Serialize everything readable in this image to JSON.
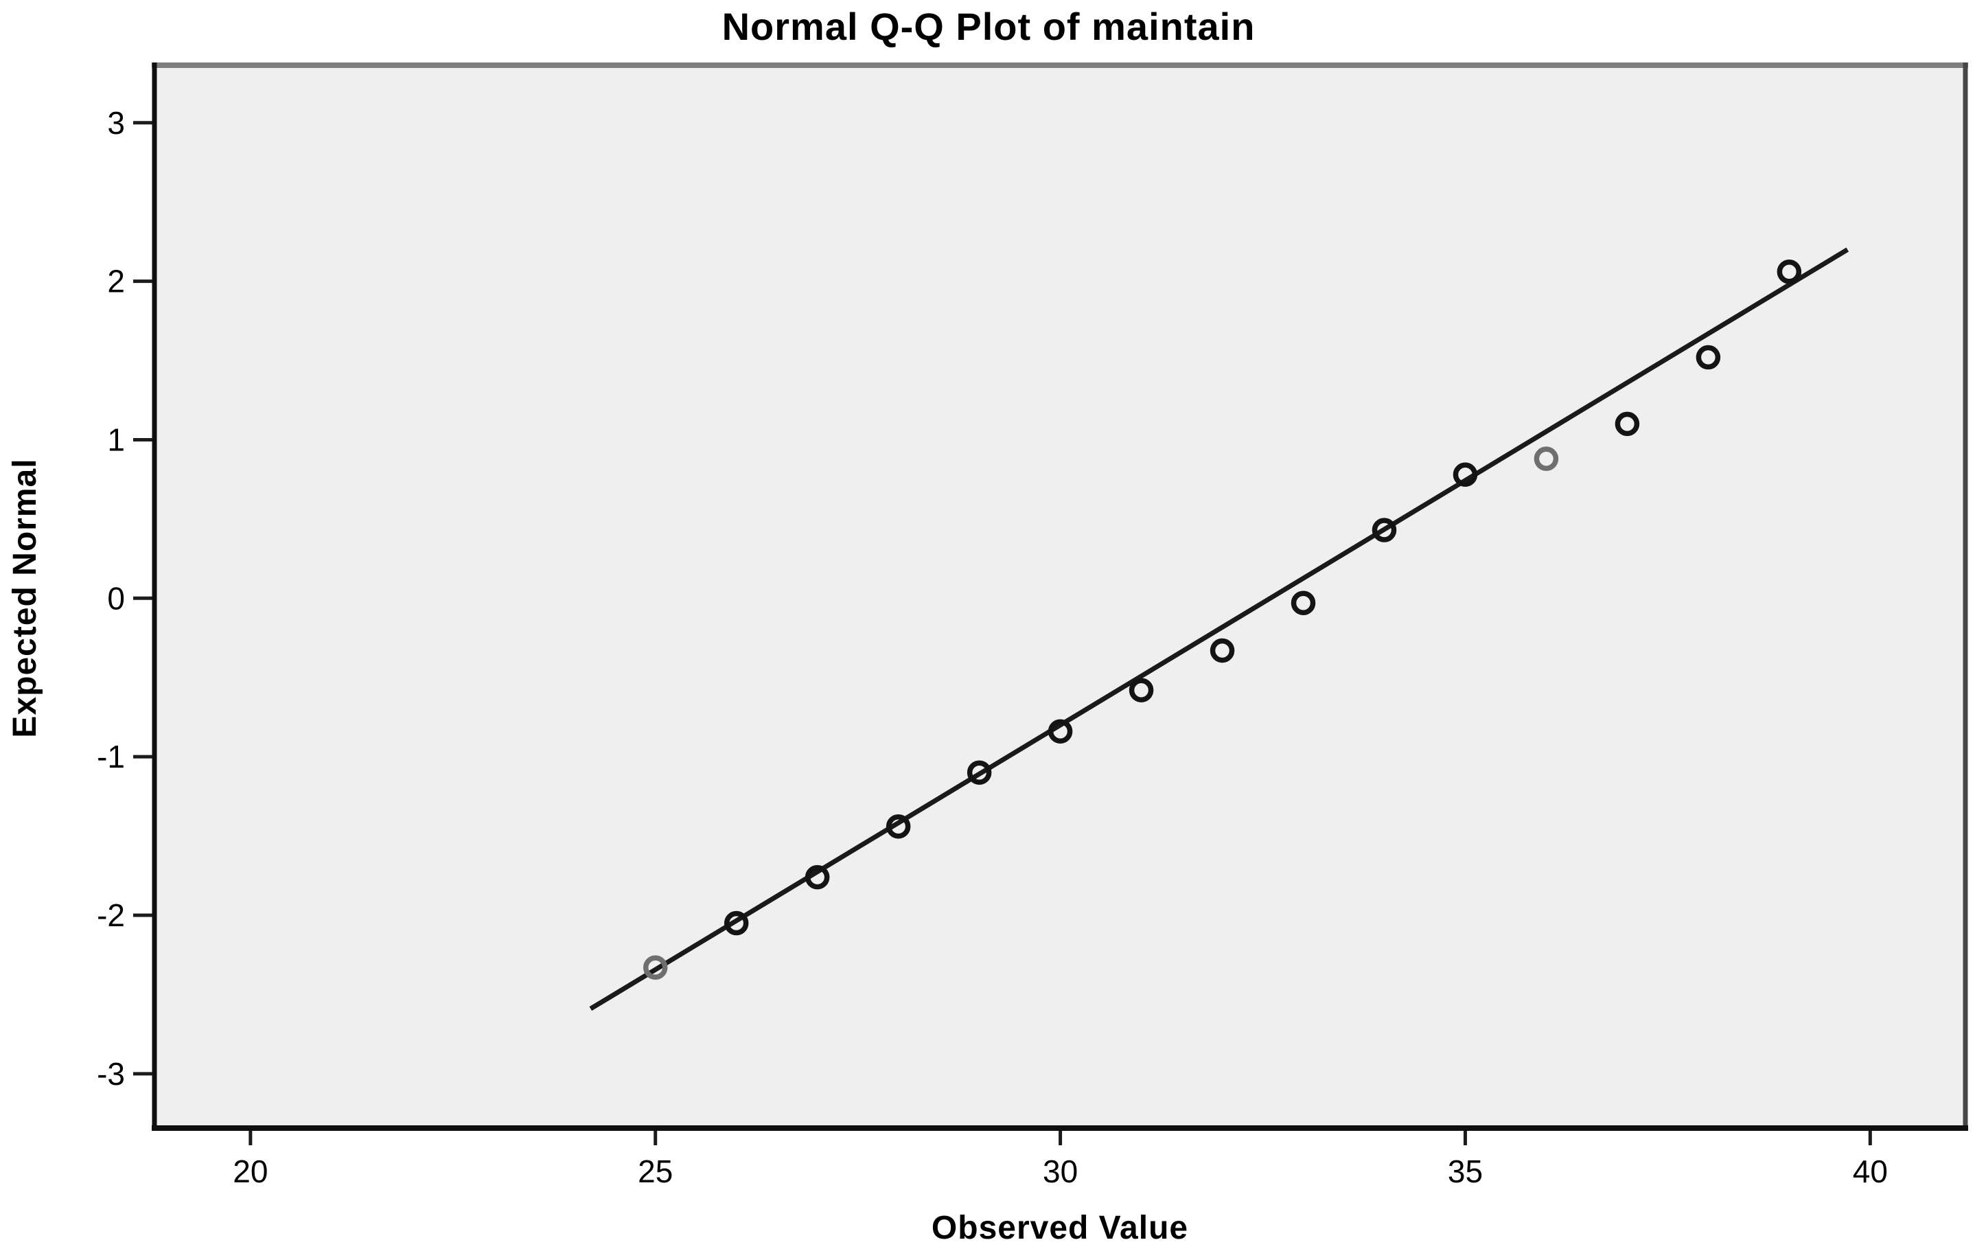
{
  "chart_data": {
    "type": "scatter",
    "title": "Normal Q-Q Plot of maintain",
    "xlabel": "Observed Value",
    "ylabel": "Expected Normal",
    "x_ticks": [
      20,
      25,
      30,
      35,
      40
    ],
    "y_ticks": [
      3,
      2,
      1,
      0,
      -1,
      -2,
      -3
    ],
    "xlim": [
      18.84,
      41.15
    ],
    "ylim": [
      -3.33,
      3.35
    ],
    "grid": false,
    "legend_position": "none",
    "points": [
      {
        "observed": 25,
        "expected": -2.33,
        "muted": true
      },
      {
        "observed": 26,
        "expected": -2.05,
        "muted": false
      },
      {
        "observed": 27,
        "expected": -1.76,
        "muted": false
      },
      {
        "observed": 28,
        "expected": -1.44,
        "muted": false
      },
      {
        "observed": 29,
        "expected": -1.1,
        "muted": false
      },
      {
        "observed": 30,
        "expected": -0.84,
        "muted": false
      },
      {
        "observed": 31,
        "expected": -0.58,
        "muted": false
      },
      {
        "observed": 32,
        "expected": -0.33,
        "muted": false
      },
      {
        "observed": 33,
        "expected": -0.03,
        "muted": false
      },
      {
        "observed": 34,
        "expected": 0.43,
        "muted": false
      },
      {
        "observed": 35,
        "expected": 0.78,
        "muted": false
      },
      {
        "observed": 36,
        "expected": 0.88,
        "muted": true
      },
      {
        "observed": 37,
        "expected": 1.1,
        "muted": false
      },
      {
        "observed": 38,
        "expected": 1.52,
        "muted": false
      },
      {
        "observed": 39,
        "expected": 2.06,
        "muted": false
      }
    ],
    "trend_line": {
      "x1": 24.2,
      "y1": -2.59,
      "x2": 39.72,
      "y2": 2.2
    },
    "colors": {
      "plot_bg": "#efefef",
      "page_bg": "#ffffff",
      "point": "#141414",
      "point_muted": "#6f6f6f",
      "line": "#1a1a1a",
      "tick": "#1c1c1c",
      "frame_top": "#7e7e7e",
      "frame_right": "#474747",
      "frame_dark": "#0f0f0f",
      "text": "#000000"
    }
  }
}
